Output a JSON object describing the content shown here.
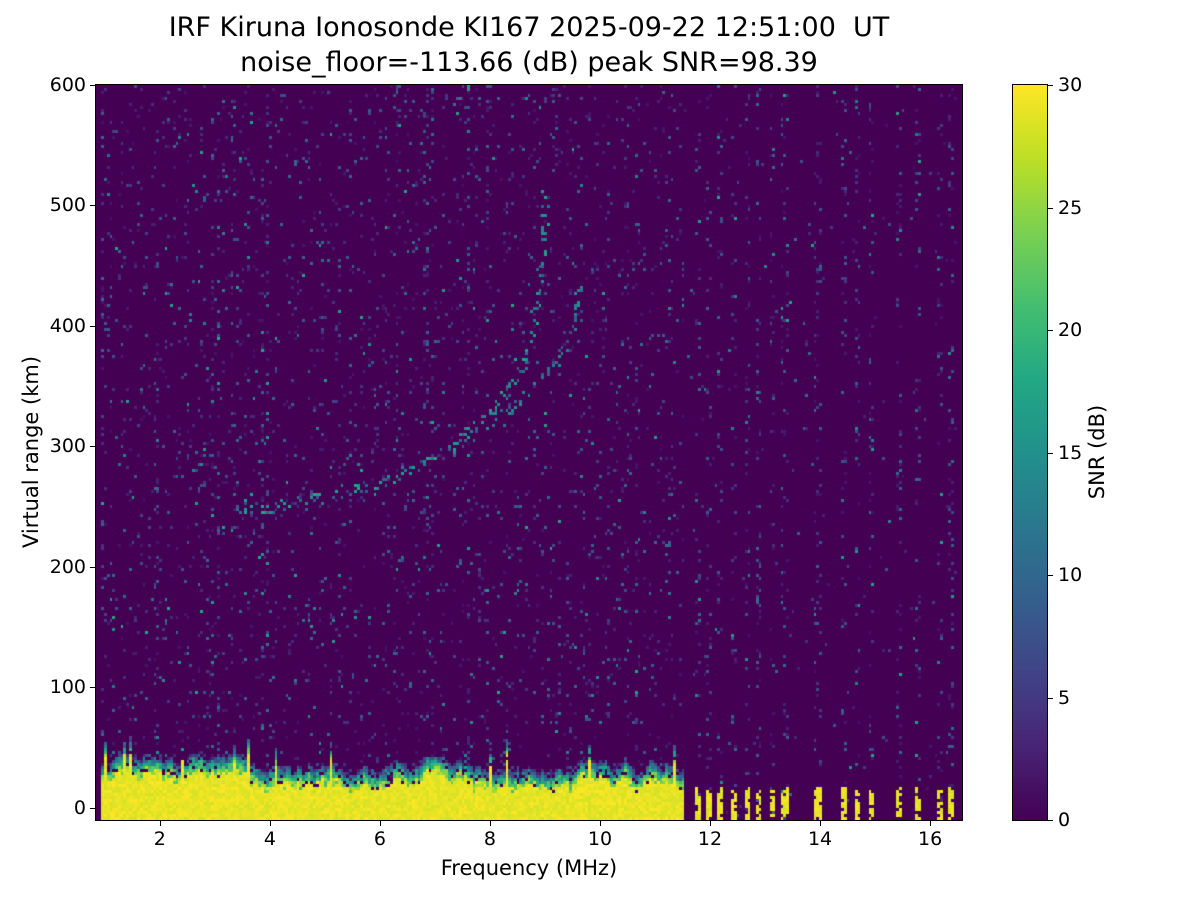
{
  "chart_data": {
    "type": "heatmap",
    "title": "IRF Kiruna Ionosonde KI167 2025-09-22 12:51:00  UT",
    "subtitle": "noise_floor=-113.66 (dB) peak SNR=98.39",
    "xlabel": "Frequency (MHz)",
    "ylabel": "Virtual range (km)",
    "xlim": [
      0.84,
      16.58
    ],
    "ylim": [
      -10,
      600
    ],
    "x_ticks": [
      2,
      4,
      6,
      8,
      10,
      12,
      14,
      16
    ],
    "y_ticks": [
      0,
      100,
      200,
      300,
      400,
      500,
      600
    ],
    "grid": false,
    "noise_floor_db": -113.66,
    "peak_snr_db": 98.39,
    "data_extent_mhz": [
      0.93,
      16.5
    ],
    "colorbar": {
      "label": "SNR (dB)",
      "min": 0,
      "max": 30,
      "ticks": [
        0,
        5,
        10,
        15,
        20,
        25,
        30
      ],
      "colormap": "viridis",
      "colormap_stops": [
        "#440154",
        "#482475",
        "#414487",
        "#355f8d",
        "#2a788e",
        "#21918c",
        "#22a884",
        "#44bf70",
        "#7ad151",
        "#bddf26",
        "#fde725"
      ]
    },
    "features": {
      "ground_clutter": {
        "freq_mhz": [
          0.93,
          11.55
        ],
        "top_km_range": [
          16,
          34
        ],
        "snr_db": 30
      },
      "interference_columns_mhz": [
        11.8,
        12.0,
        12.2,
        12.45,
        12.67,
        12.9,
        13.13,
        13.36,
        13.96,
        14.45,
        14.7,
        14.94,
        15.45,
        15.8,
        16.17,
        16.4
      ],
      "background_speckle_prob": 0.05,
      "f_trace_o_mode": [
        [
          3.4,
          246
        ],
        [
          3.8,
          248
        ],
        [
          4.2,
          250
        ],
        [
          4.6,
          253
        ],
        [
          5.0,
          257
        ],
        [
          5.4,
          261
        ],
        [
          5.8,
          266
        ],
        [
          6.2,
          273
        ],
        [
          6.6,
          281
        ],
        [
          7.0,
          291
        ],
        [
          7.4,
          303
        ],
        [
          7.7,
          315
        ],
        [
          8.0,
          328
        ],
        [
          8.3,
          344
        ],
        [
          8.55,
          362
        ],
        [
          8.7,
          382
        ],
        [
          8.82,
          404
        ],
        [
          8.9,
          428
        ],
        [
          8.96,
          452
        ],
        [
          9.0,
          478
        ],
        [
          9.04,
          508
        ]
      ],
      "f_trace_x_mode": [
        [
          7.2,
          296
        ],
        [
          7.6,
          306
        ],
        [
          8.0,
          318
        ],
        [
          8.4,
          332
        ],
        [
          8.7,
          345
        ],
        [
          9.0,
          360
        ],
        [
          9.2,
          372
        ],
        [
          9.35,
          382
        ],
        [
          9.5,
          392
        ],
        [
          9.58,
          412
        ],
        [
          9.63,
          435
        ]
      ],
      "critical_frequency_o_mode_mhz": 9.05
    },
    "colors": {
      "background": "#ffffff",
      "text": "#000000",
      "heatmap_floor": "#440154",
      "heatmap_peak": "#fde725"
    }
  }
}
